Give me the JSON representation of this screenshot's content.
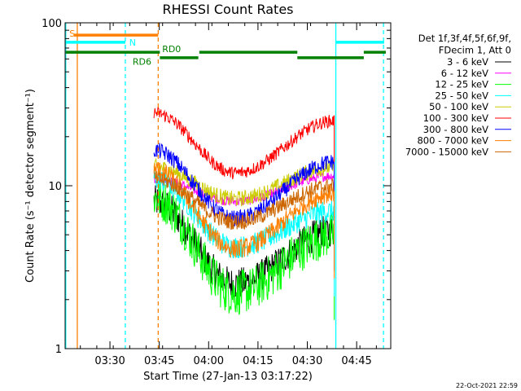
{
  "chart_data": {
    "type": "line",
    "title": "RHESSI Count Rates",
    "xlabel": "Start Time (27-Jan-13 03:17:22)",
    "ylabel": "Count Rate (s⁻¹ detector segment⁻¹)",
    "x_unit": "minutes since 03:17:22",
    "xlim": [
      0,
      99
    ],
    "ylim": [
      1,
      100
    ],
    "y_scale": "log",
    "grid": false,
    "x_ticks": [
      {
        "x": 13.63,
        "label": "03:30"
      },
      {
        "x": 28.63,
        "label": "03:45"
      },
      {
        "x": 43.63,
        "label": "04:00"
      },
      {
        "x": 58.63,
        "label": "04:15"
      },
      {
        "x": 73.63,
        "label": "04:30"
      },
      {
        "x": 88.63,
        "label": "04:45"
      }
    ],
    "y_ticks": [
      {
        "y": 1,
        "label": "1"
      },
      {
        "y": 10,
        "label": "10"
      },
      {
        "y": 100,
        "label": "100"
      }
    ],
    "legend": {
      "header": [
        "Det 1f,3f,4f,5f,6f,9f,",
        "FDecim 1, Att 0"
      ],
      "placement": "right"
    },
    "data_start_x": 27.0,
    "data_end_x": 81.8,
    "series": [
      {
        "name": "3 - 6 keV",
        "color": "#000000",
        "start": 8.0,
        "min": 2.5,
        "end": 5.3,
        "noise": 0.1
      },
      {
        "name": "6 - 12 keV",
        "color": "#ff00ff",
        "start": 11.0,
        "min": 8.0,
        "end": 11.5,
        "noise": 0.03
      },
      {
        "name": "12 - 25 keV",
        "color": "#00ff00",
        "start": 8.5,
        "min": 2.2,
        "end": 5.0,
        "noise": 0.14
      },
      {
        "name": "25 - 50 keV",
        "color": "#00ffff",
        "start": 11.0,
        "min": 4.2,
        "end": 7.0,
        "noise": 0.07
      },
      {
        "name": "50 - 100 keV",
        "color": "#cccc00",
        "start": 13.0,
        "min": 8.3,
        "end": 13.0,
        "noise": 0.05
      },
      {
        "name": "100 - 300 keV",
        "color": "#ff0000",
        "start": 28.0,
        "min": 12.0,
        "end": 25.0,
        "noise": 0.04
      },
      {
        "name": "300 - 800 keV",
        "color": "#0000ff",
        "start": 16.5,
        "min": 6.3,
        "end": 14.0,
        "noise": 0.05
      },
      {
        "name": "800 - 7000 keV",
        "color": "#ff8000",
        "start": 12.5,
        "min": 4.1,
        "end": 9.0,
        "noise": 0.06
      },
      {
        "name": "7000 - 15000 keV",
        "color": "#cc6600",
        "start": 11.0,
        "min": 6.0,
        "end": 10.0,
        "noise": 0.05
      }
    ],
    "flags": [
      {
        "label": "S",
        "color": "#ff8000",
        "x1": 2.7,
        "x2": 28.3,
        "y": 84.0
      },
      {
        "label": "N",
        "color": "#00ffff",
        "x1": 0.2,
        "x2": 18.3,
        "y": 76.0
      },
      {
        "label": "N2",
        "color": "#00ffff",
        "x1": 82.3,
        "x2": 97.0,
        "y": 76.0
      },
      {
        "label": "RD0",
        "color": "#008000",
        "x1": 0.2,
        "x2": 28.8,
        "y": 66.0
      },
      {
        "label": "RD0b",
        "color": "#008000",
        "x1": 40.8,
        "x2": 70.6,
        "y": 66.0
      },
      {
        "label": "RD0c",
        "color": "#008000",
        "x1": 90.8,
        "x2": 97.5,
        "y": 66.0
      },
      {
        "label": "RD6",
        "color": "#008000",
        "x1": 28.8,
        "x2": 40.5,
        "y": 61.0
      },
      {
        "label": "RD6b",
        "color": "#008000",
        "x1": 70.6,
        "x2": 90.8,
        "y": 61.0
      }
    ],
    "flag_labels": [
      {
        "text": "S",
        "color": "#ff8000",
        "x": 1.3,
        "y": 86.0
      },
      {
        "text": "N",
        "color": "#00ffff",
        "x": 19.5,
        "y": 76.0
      },
      {
        "text": "RD0",
        "color": "#008000",
        "x": 29.5,
        "y": 69.0
      },
      {
        "text": "RD6",
        "color": "#008000",
        "x": 20.5,
        "y": 58.0
      }
    ],
    "vertical_lines": [
      {
        "x": 0.2,
        "color": "#00ffff",
        "style": "solid"
      },
      {
        "x": 3.7,
        "color": "#ff8000",
        "style": "solid"
      },
      {
        "x": 18.3,
        "color": "#00ffff",
        "style": "dashed"
      },
      {
        "x": 28.3,
        "color": "#ff8000",
        "style": "dashed"
      },
      {
        "x": 82.3,
        "color": "#00ffff",
        "style": "solid"
      },
      {
        "x": 96.8,
        "color": "#00ffff",
        "style": "dashed"
      }
    ]
  },
  "footer": {
    "timestamp": "22-Oct-2021 22:59"
  }
}
